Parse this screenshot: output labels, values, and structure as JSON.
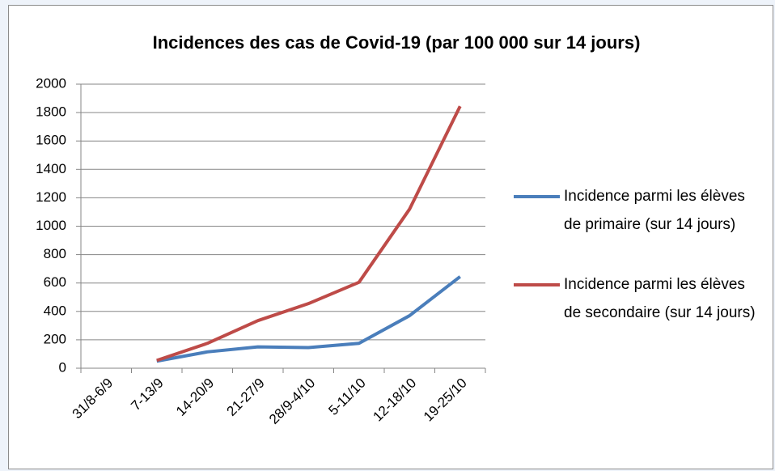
{
  "chart_data": {
    "type": "line",
    "title": "Incidences des cas de Covid-19 (par 100 000 sur 14 jours)",
    "categories": [
      "31/8-6/9",
      "7-13/9",
      "14-20/9",
      "21-27/9",
      "28/9-4/10",
      "5-11/10",
      "12-18/10",
      "19-25/10"
    ],
    "series": [
      {
        "name": "Incidence parmi les élèves de primaire (sur 14 jours)",
        "color": "#4a7ebb",
        "values": [
          null,
          50,
          115,
          150,
          145,
          175,
          370,
          645
        ]
      },
      {
        "name": "Incidence parmi les élèves de secondaire (sur 14 jours)",
        "color": "#be4b48",
        "values": [
          null,
          55,
          175,
          335,
          455,
          605,
          1120,
          1845
        ]
      }
    ],
    "ylim": [
      0,
      2000
    ],
    "yticks": [
      0,
      200,
      400,
      600,
      800,
      1000,
      1200,
      1400,
      1600,
      1800,
      2000
    ],
    "grid": true,
    "legend": "right"
  }
}
